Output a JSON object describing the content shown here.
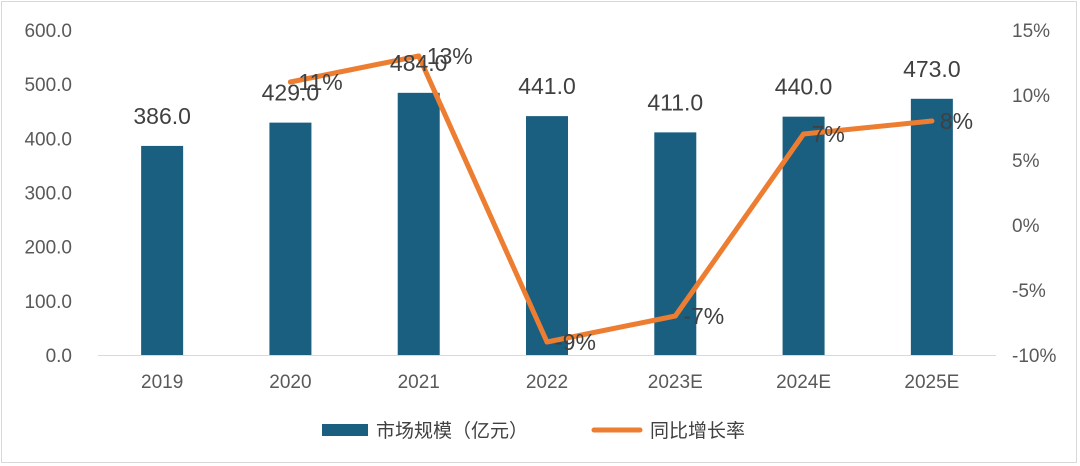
{
  "chart_data": {
    "type": "bar",
    "categories": [
      "2019",
      "2020",
      "2021",
      "2022",
      "2023E",
      "2024E",
      "2025E"
    ],
    "series": [
      {
        "name": "市场规模（亿元）",
        "type": "bar",
        "axis": "left",
        "color": "#1a5e80",
        "values": [
          386.0,
          429.0,
          484.0,
          441.0,
          411.0,
          440.0,
          473.0
        ],
        "labels": [
          "386.0",
          "429.0",
          "484.0",
          "441.0",
          "411.0",
          "440.0",
          "473.0"
        ]
      },
      {
        "name": "同比增长率",
        "type": "line",
        "axis": "right",
        "color": "#ed7d31",
        "values": [
          null,
          11,
          13,
          -9,
          -7,
          7,
          8
        ],
        "labels": [
          "",
          "11%",
          "13%",
          "-9%",
          "-7%",
          "7%",
          "8%"
        ]
      }
    ],
    "y_left": {
      "lim": [
        0,
        600
      ],
      "ticks": [
        "0.0",
        "100.0",
        "200.0",
        "300.0",
        "400.0",
        "500.0",
        "600.0"
      ]
    },
    "y_right": {
      "lim": [
        -10,
        15
      ],
      "ticks": [
        "-10%",
        "-5%",
        "0%",
        "5%",
        "10%",
        "15%"
      ]
    },
    "grid": false,
    "legend_position": "bottom"
  }
}
